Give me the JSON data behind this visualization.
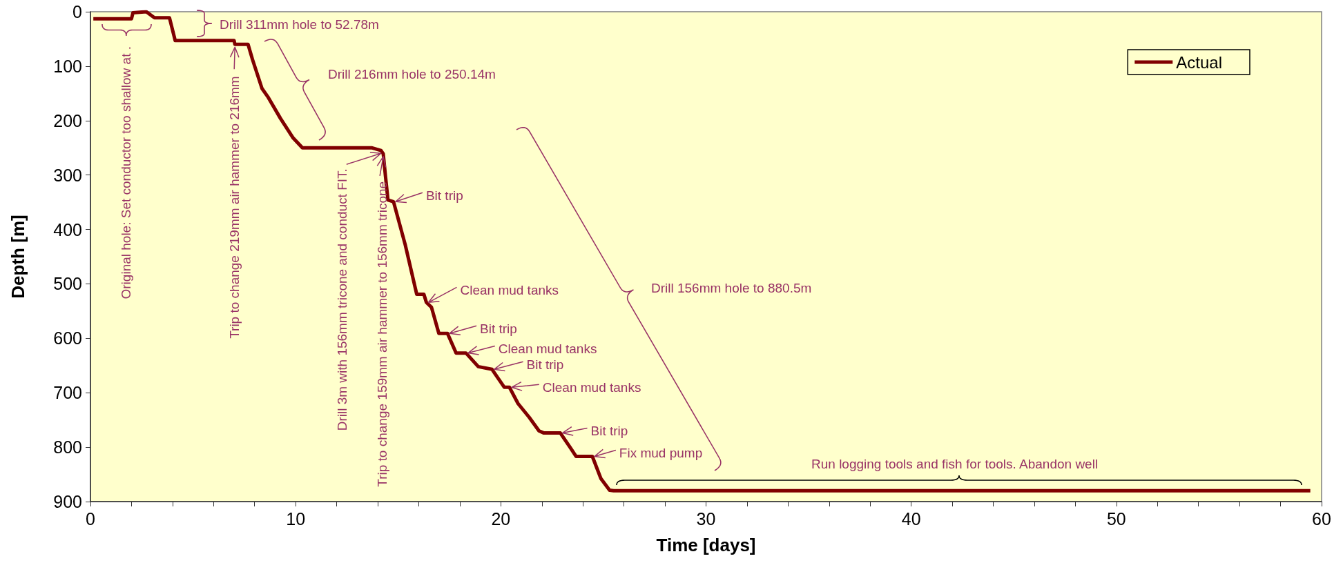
{
  "chart_data": {
    "type": "line",
    "xlabel": "Time [days]",
    "ylabel": "Depth [m]",
    "series": [
      {
        "name": "Actual",
        "color": "#800000",
        "x": [
          0.14,
          2.0,
          2.07,
          2.72,
          3.12,
          3.85,
          4.13,
          7.0,
          7.04,
          7.68,
          7.9,
          8.36,
          8.64,
          9.26,
          9.88,
          10.33,
          13.7,
          14.16,
          14.27,
          14.38,
          14.5,
          14.77,
          15.34,
          15.9,
          16.25,
          16.37,
          16.62,
          16.98,
          17.4,
          17.82,
          18.3,
          18.9,
          19.57,
          20.17,
          20.42,
          20.84,
          21.38,
          21.86,
          22.1,
          22.9,
          23.37,
          23.67,
          24.46,
          24.88,
          25.3,
          25.5,
          59.45
        ],
        "values": [
          13,
          13,
          2,
          0,
          11,
          11,
          53,
          53,
          60,
          60,
          88,
          141,
          156,
          196,
          232,
          250,
          250,
          255,
          261,
          303,
          346,
          349,
          428,
          519,
          519,
          534,
          543,
          591,
          591,
          627,
          627,
          652,
          657,
          690,
          690,
          720,
          745,
          770,
          774,
          774,
          800,
          817,
          817,
          858,
          879,
          880,
          880
        ]
      }
    ],
    "xlim": [
      0,
      60
    ],
    "xticks": [
      0,
      {
        "value": 2,
        "label": null
      },
      {
        "value": 4,
        "label": null
      },
      {
        "value": 6,
        "label": null
      },
      {
        "value": 8,
        "label": null
      },
      10,
      {
        "value": 12,
        "label": null
      },
      {
        "value": 14,
        "label": null
      },
      {
        "value": 16,
        "label": null
      },
      {
        "value": 18,
        "label": null
      },
      20,
      {
        "value": 22,
        "label": null
      },
      {
        "value": 24,
        "label": null
      },
      {
        "value": 26,
        "label": null
      },
      {
        "value": 28,
        "label": null
      },
      30,
      {
        "value": 32,
        "label": null
      },
      {
        "value": 34,
        "label": null
      },
      {
        "value": 36,
        "label": null
      },
      {
        "value": 38,
        "label": null
      },
      40,
      {
        "value": 42,
        "label": null
      },
      {
        "value": 44,
        "label": null
      },
      {
        "value": 46,
        "label": null
      },
      {
        "value": 48,
        "label": null
      },
      50,
      {
        "value": 52,
        "label": null
      },
      {
        "value": 54,
        "label": null
      },
      {
        "value": 56,
        "label": null
      },
      {
        "value": 58,
        "label": null
      },
      60
    ],
    "ylim": [
      900,
      0
    ],
    "yticks": [
      0,
      100,
      200,
      300,
      400,
      500,
      600,
      700,
      800,
      900
    ],
    "grid": false,
    "legend": "top right",
    "marker": "none",
    "annotations": [
      "Original hole: Set conductor too shallow at .",
      "Drill 311mm hole to 52.78m",
      {
        "text": "Trip to change 219mm air hammer to 216mm",
        "x": 7.04,
        "y": 60
      },
      "Drill 216mm hole to 250.14m",
      {
        "text": "Drill 3m with 156mm tricone and conduct FIT.",
        "x": 14.16,
        "y": 255
      },
      {
        "text": "Trip to change 159mm air hammer to 156mm tricone",
        "x": 14.27,
        "y": 261
      },
      {
        "text": "Bit trip",
        "x": 14.77,
        "y": 349
      },
      {
        "text": "Clean mud tanks",
        "x": 16.37,
        "y": 534
      },
      {
        "text": "Bit trip",
        "x": 17.4,
        "y": 591
      },
      {
        "text": "Clean mud tanks",
        "x": 18.3,
        "y": 627
      },
      {
        "text": "Bit trip",
        "x": 19.57,
        "y": 657
      },
      {
        "text": "Clean mud tanks",
        "x": 20.42,
        "y": 690
      },
      {
        "text": "Bit trip",
        "x": 22.9,
        "y": 774
      },
      {
        "text": "Fix mud pump",
        "x": 24.46,
        "y": 817
      },
      "Drill 156mm hole to 880.5m",
      "Run logging tools and fish for tools. Abandon well"
    ]
  }
}
